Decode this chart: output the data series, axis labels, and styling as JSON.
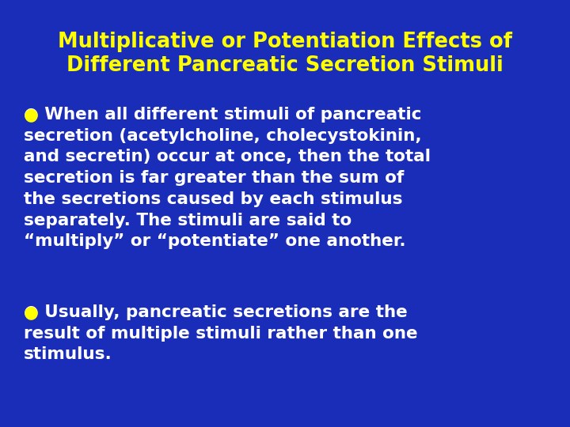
{
  "background_color": "#1a2db8",
  "title_line1": "Multiplicative or Potentiation Effects of",
  "title_line2": "Different Pancreatic Secretion Stimuli",
  "title_color": "#ffff00",
  "title_fontsize": 18.5,
  "body_color": "#ffffff",
  "bullet_color": "#ffff00",
  "body_fontsize": 15.5,
  "bullet1_text": "● When all different stimuli of pancreatic\nsecretion (acetylcholine, cholecystokinin,\nand secretin) occur at once, then the total\nsecretion is far greater than the sum of\nthe secretions caused by each stimulus\nseparately. The stimuli are said to\n“multiply” or “potentiate” one another.",
  "bullet2_text": "● Usually, pancreatic secretions are the\nresult of multiple stimuli rather than one\nstimulus.",
  "bullet1_first_line": "● When all different stimuli of pancreatic",
  "bullet2_first_line": "● Usually, pancreatic secretions are the"
}
